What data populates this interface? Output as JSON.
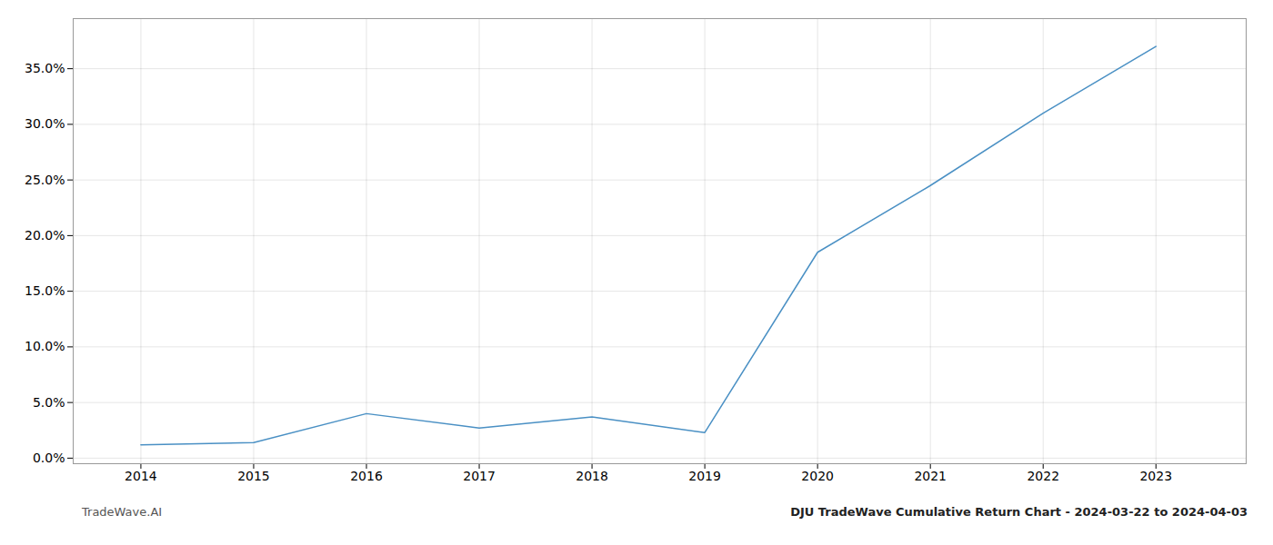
{
  "chart_data": {
    "type": "line",
    "x": [
      2014,
      2015,
      2016,
      2017,
      2018,
      2019,
      2020,
      2021,
      2022,
      2023
    ],
    "values": [
      1.2,
      1.4,
      4.0,
      2.7,
      3.7,
      2.3,
      18.5,
      24.5,
      31.0,
      37.0
    ],
    "color": "#4a90c4",
    "xlim": [
      2013.4,
      2023.8
    ],
    "xticks": [
      2014,
      2015,
      2016,
      2017,
      2018,
      2019,
      2020,
      2021,
      2022,
      2023
    ],
    "ylim": [
      -0.5,
      39.5
    ],
    "yticks": [
      {
        "value": 0.0,
        "label": "0.0%"
      },
      {
        "value": 5.0,
        "label": "5.0%"
      },
      {
        "value": 10.0,
        "label": "10.0%"
      },
      {
        "value": 15.0,
        "label": "15.0%"
      },
      {
        "value": 20.0,
        "label": "20.0%"
      },
      {
        "value": 25.0,
        "label": "25.0%"
      },
      {
        "value": 30.0,
        "label": "30.0%"
      },
      {
        "value": 35.0,
        "label": "35.0%"
      }
    ],
    "grid": true,
    "annotations": [
      "TradeWave.AI",
      "DJU TradeWave Cumulative Return Chart - 2024-03-22 to 2024-04-03"
    ]
  }
}
